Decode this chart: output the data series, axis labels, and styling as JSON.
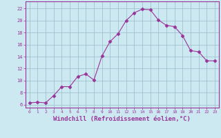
{
  "x": [
    0,
    1,
    2,
    3,
    4,
    5,
    6,
    7,
    8,
    9,
    10,
    11,
    12,
    13,
    14,
    15,
    16,
    17,
    18,
    19,
    20,
    21,
    22,
    23
  ],
  "y": [
    6.3,
    6.4,
    6.3,
    7.5,
    9.0,
    9.0,
    10.7,
    11.1,
    10.1,
    14.1,
    16.5,
    17.8,
    20.0,
    21.3,
    21.9,
    21.8,
    20.1,
    19.2,
    19.0,
    17.5,
    15.0,
    14.8,
    13.3,
    13.3
  ],
  "line_color": "#993399",
  "marker": "D",
  "marker_size": 2.5,
  "bg_color": "#cce8f0",
  "grid_color": "#99bbcc",
  "axis_color": "#993399",
  "tick_color": "#993399",
  "xlabel": "Windchill (Refroidissement éolien,°C)",
  "xlabel_fontsize": 6.5,
  "ytick_labels": [
    "6",
    "8",
    "10",
    "12",
    "14",
    "16",
    "18",
    "20",
    "22"
  ],
  "ytick_values": [
    6,
    8,
    10,
    12,
    14,
    16,
    18,
    20,
    22
  ],
  "xlim": [
    -0.5,
    23.5
  ],
  "ylim": [
    5.5,
    23.2
  ],
  "xticks": [
    0,
    1,
    2,
    3,
    4,
    5,
    6,
    7,
    8,
    9,
    10,
    11,
    12,
    13,
    14,
    15,
    16,
    17,
    18,
    19,
    20,
    21,
    22,
    23
  ]
}
